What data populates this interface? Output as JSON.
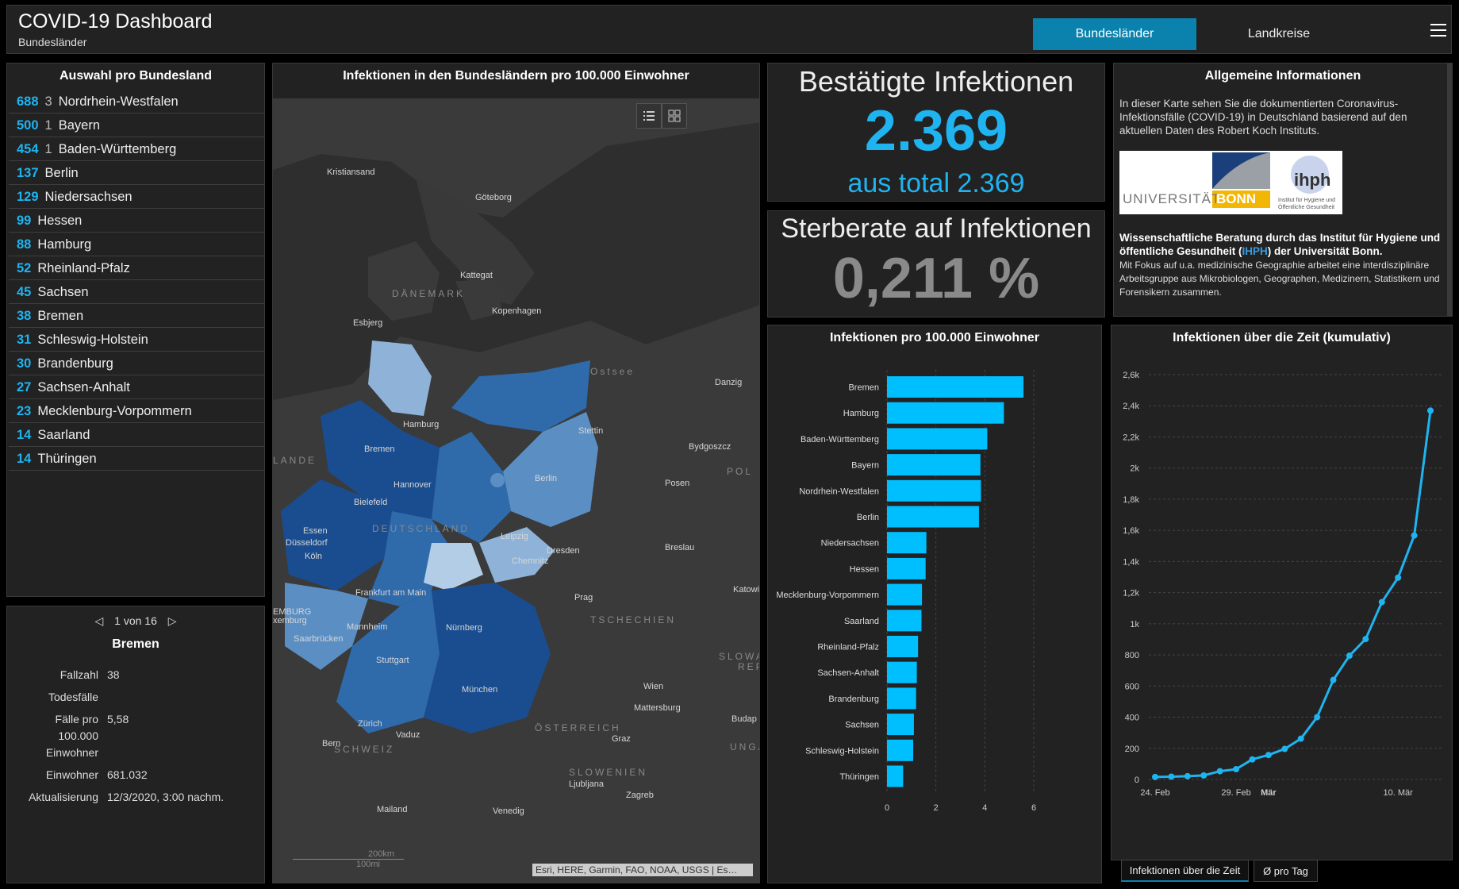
{
  "header": {
    "title": "COVID-19 Dashboard",
    "subtitle": "Bundesländer",
    "tabs": [
      "Bundesländer",
      "Landkreise"
    ],
    "accent": "#0a82ad"
  },
  "list": {
    "title": "Auswahl pro Bundesland",
    "items": [
      {
        "value": "688",
        "extra": "3",
        "name": "Nordrhein-Westfalen"
      },
      {
        "value": "500",
        "extra": "1",
        "name": "Bayern"
      },
      {
        "value": "454",
        "extra": "1",
        "name": "Baden-Württemberg"
      },
      {
        "value": "137",
        "extra": "",
        "name": "Berlin"
      },
      {
        "value": "129",
        "extra": "",
        "name": "Niedersachsen"
      },
      {
        "value": "99",
        "extra": "",
        "name": "Hessen"
      },
      {
        "value": "88",
        "extra": "",
        "name": "Hamburg"
      },
      {
        "value": "52",
        "extra": "",
        "name": "Rheinland-Pfalz"
      },
      {
        "value": "45",
        "extra": "",
        "name": "Sachsen"
      },
      {
        "value": "38",
        "extra": "",
        "name": "Bremen"
      },
      {
        "value": "31",
        "extra": "",
        "name": "Schleswig-Holstein"
      },
      {
        "value": "30",
        "extra": "",
        "name": "Brandenburg"
      },
      {
        "value": "27",
        "extra": "",
        "name": "Sachsen-Anhalt"
      },
      {
        "value": "23",
        "extra": "",
        "name": "Mecklenburg-Vorpommern"
      },
      {
        "value": "14",
        "extra": "",
        "name": "Saarland"
      },
      {
        "value": "14",
        "extra": "",
        "name": "Thüringen"
      }
    ]
  },
  "detail": {
    "pager": "1 von 16",
    "title": "Bremen",
    "rows": [
      {
        "label": "Fallzahl",
        "value": "38"
      },
      {
        "label": "Todesfälle",
        "value": ""
      },
      {
        "label": "Fälle pro 100.000 Einwohner",
        "value": "5,58"
      },
      {
        "label": "Einwohner",
        "value": "681.032"
      },
      {
        "label": "Aktualisierung",
        "value": "12/3/2020, 3:00 nachm."
      }
    ]
  },
  "map": {
    "title": "Infektionen in den Bundesländern pro 100.000 Einwohner",
    "attribution": "Esri, HERE, Garmin, FAO, NOAA, USGS | Es…",
    "scale_km": "200km",
    "scale_mi": "100mi",
    "labels": [
      "Kristiansand",
      "Göteborg",
      "Kattegat",
      "DÄNEMARK",
      "Esbjerg",
      "Kopenhagen",
      "Ostsee",
      "Danzig",
      "Hamburg",
      "Stettin",
      "Bremen",
      "Bydgoszcz",
      "LANDE",
      "POL",
      "Hannover",
      "Berlin",
      "Posen",
      "Bielefeld",
      "Essen",
      "DEUTSCHLAND",
      "Düsseldorf",
      "Leipzig",
      "Dresden",
      "Breslau",
      "Köln",
      "Chemnitz",
      "Frankfurt am Main",
      "Prag",
      "Katowi",
      "EMBURG",
      "xemburg",
      "Saarbrücken",
      "Mannheim",
      "Nürnberg",
      "TSCHECHIEN",
      "Stuttgart",
      "SLOWA",
      "REP",
      "München",
      "Wien",
      "Mattersburg",
      "Zürich",
      "Budap",
      "Vaduz",
      "ÖSTERREICH",
      "Bern",
      "Graz",
      "SCHWEIZ",
      "UNGA",
      "SLOWENIEN",
      "Ljubljana",
      "Zagreb",
      "Mailand",
      "Venedig"
    ],
    "colors": {
      "dark": "#1a4d8f",
      "mid": "#2f6aab",
      "light": "#5b8fc4",
      "lighter": "#8fb3d8",
      "lightest": "#b4cde6"
    }
  },
  "kpi": {
    "confirmed_title": "Bestätigte Infektionen",
    "confirmed_value": "2.369",
    "confirmed_total": "aus total 2.369",
    "death_title": "Sterberate auf Infektionen",
    "death_value": "0,211 %",
    "value_color": "#1fb4f0",
    "death_color": "#8a8a8a"
  },
  "info": {
    "title": "Allgemeine Informationen",
    "text": "In dieser Karte sehen Sie die dokumentierten Coronavirus-Infektionsfälle (COVID-19) in Deutschland basierend auf den aktuellen Daten des Robert Koch Instituts.",
    "logo_text": "UNIVERSITÄT",
    "logo_bonn": "BONN",
    "logo_ihph": "ihph",
    "logo_sub": "Institut für Hygiene und Öffentliche Gesundheit",
    "bold_pre": "Wissenschaftliche Beratung durch das Institut für Hygiene und öffentliche Gesundheit (",
    "bold_link": "IHPH",
    "bold_post": ") der Universität Bonn.",
    "small": "Mit Fokus auf u.a. medizinische Geographie arbeitet eine interdisziplinäre Arbeitsgruppe aus Mikrobiologen, Geographen, Medizinern, Statistikern und Forensikern zusammen."
  },
  "chart_data": [
    {
      "type": "bar",
      "title": "Infektionen pro 100.000 Einwohner",
      "categories": [
        "Bremen",
        "Hamburg",
        "Baden-Württemberg",
        "Bayern",
        "Nordrhein-Westfalen",
        "Berlin",
        "Niedersachsen",
        "Hessen",
        "Mecklenburg-Vorpommern",
        "Saarland",
        "Rheinland-Pfalz",
        "Sachsen-Anhalt",
        "Brandenburg",
        "Sachsen",
        "Schleswig-Holstein",
        "Thüringen"
      ],
      "values": [
        5.58,
        4.78,
        4.1,
        3.82,
        3.84,
        3.76,
        1.61,
        1.58,
        1.43,
        1.41,
        1.27,
        1.22,
        1.19,
        1.1,
        1.07,
        0.66
      ],
      "xlim": [
        0,
        6
      ],
      "xticks": [
        "0",
        "2",
        "4",
        "6"
      ],
      "bar_color": "#00bfff"
    },
    {
      "type": "line",
      "title": "Infektionen über die Zeit (kumulativ)",
      "x": [
        "24. Feb",
        "25. Feb",
        "26. Feb",
        "27. Feb",
        "28. Feb",
        "29. Feb",
        "1. Mär",
        "2. Mär",
        "3. Mär",
        "4. Mär",
        "5. Mär",
        "6. Mär",
        "7. Mär",
        "8. Mär",
        "9. Mär",
        "10. Mär",
        "11. Mär",
        "12. Mär"
      ],
      "values": [
        16,
        18,
        21,
        26,
        53,
        66,
        129,
        157,
        196,
        262,
        400,
        639,
        795,
        902,
        1139,
        1296,
        1567,
        2369
      ],
      "xticks": [
        "24. Feb",
        "29. Feb",
        "Mär",
        "10. Mär"
      ],
      "yticks": [
        "0",
        "200",
        "400",
        "600",
        "800",
        "1k",
        "1,2k",
        "1,4k",
        "1,6k",
        "1,8k",
        "2k",
        "2,2k",
        "2,4k",
        "2,6k"
      ],
      "ylim": [
        0,
        2600
      ],
      "line_color": "#1fb4f0"
    }
  ],
  "bottom_tabs": [
    "Infektionen über die Zeit",
    "Ø pro Tag"
  ]
}
